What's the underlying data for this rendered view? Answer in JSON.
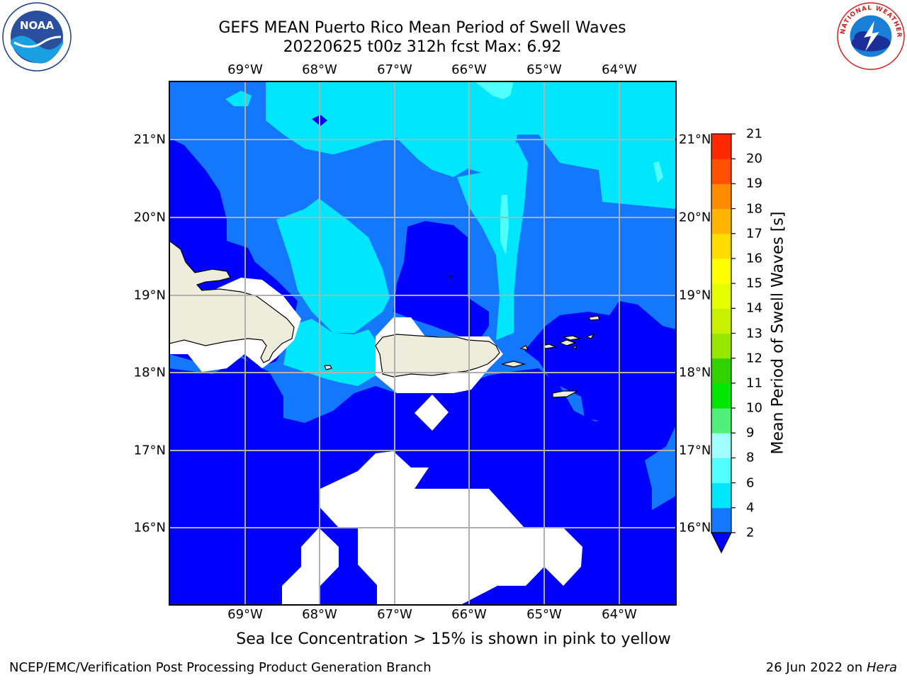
{
  "header": {
    "title_line1": "GEFS MEAN Puerto Rico Mean Period of Swell Waves",
    "title_line2": "20220625 t00z 312h fcst   Max: 6.92"
  },
  "map": {
    "longitude_labels": [
      "69°W",
      "68°W",
      "67°W",
      "66°W",
      "65°W",
      "64°W"
    ],
    "latitude_labels": [
      "21°N",
      "20°N",
      "19°N",
      "18°N",
      "17°N",
      "16°N"
    ],
    "land_color": "#eeeddc",
    "missing_color": "#ffffff",
    "grid_color": "#b0b0b0"
  },
  "colorbar": {
    "label": "Mean Period of Swell Waves [s]",
    "ticks": [
      "2",
      "4",
      "6",
      "8",
      "9",
      "10",
      "11",
      "12",
      "13",
      "14",
      "15",
      "16",
      "17",
      "18",
      "19",
      "20",
      "21"
    ],
    "colors": [
      "#1478ff",
      "#00e6ff",
      "#50ffff",
      "#a0ffff",
      "#50f078",
      "#00e600",
      "#32d200",
      "#96e600",
      "#c8f000",
      "#e6ff00",
      "#ffff00",
      "#ffdc00",
      "#ffb400",
      "#ff8c00",
      "#ff5000",
      "#ff2800",
      "#ff0000"
    ],
    "under_color": "#0000ff"
  },
  "notes": {
    "sea_ice": "Sea Ice Concentration > 15% is shown in pink to yellow"
  },
  "footer": {
    "left": "NCEP/EMC/Verification Post Processing Product Generation Branch",
    "right_prefix": "26 Jun 2022 on ",
    "right_host": "Hera"
  },
  "logos": {
    "left_text": "NOAA",
    "right_text": "NATIONAL WEATHER SERVICE"
  }
}
